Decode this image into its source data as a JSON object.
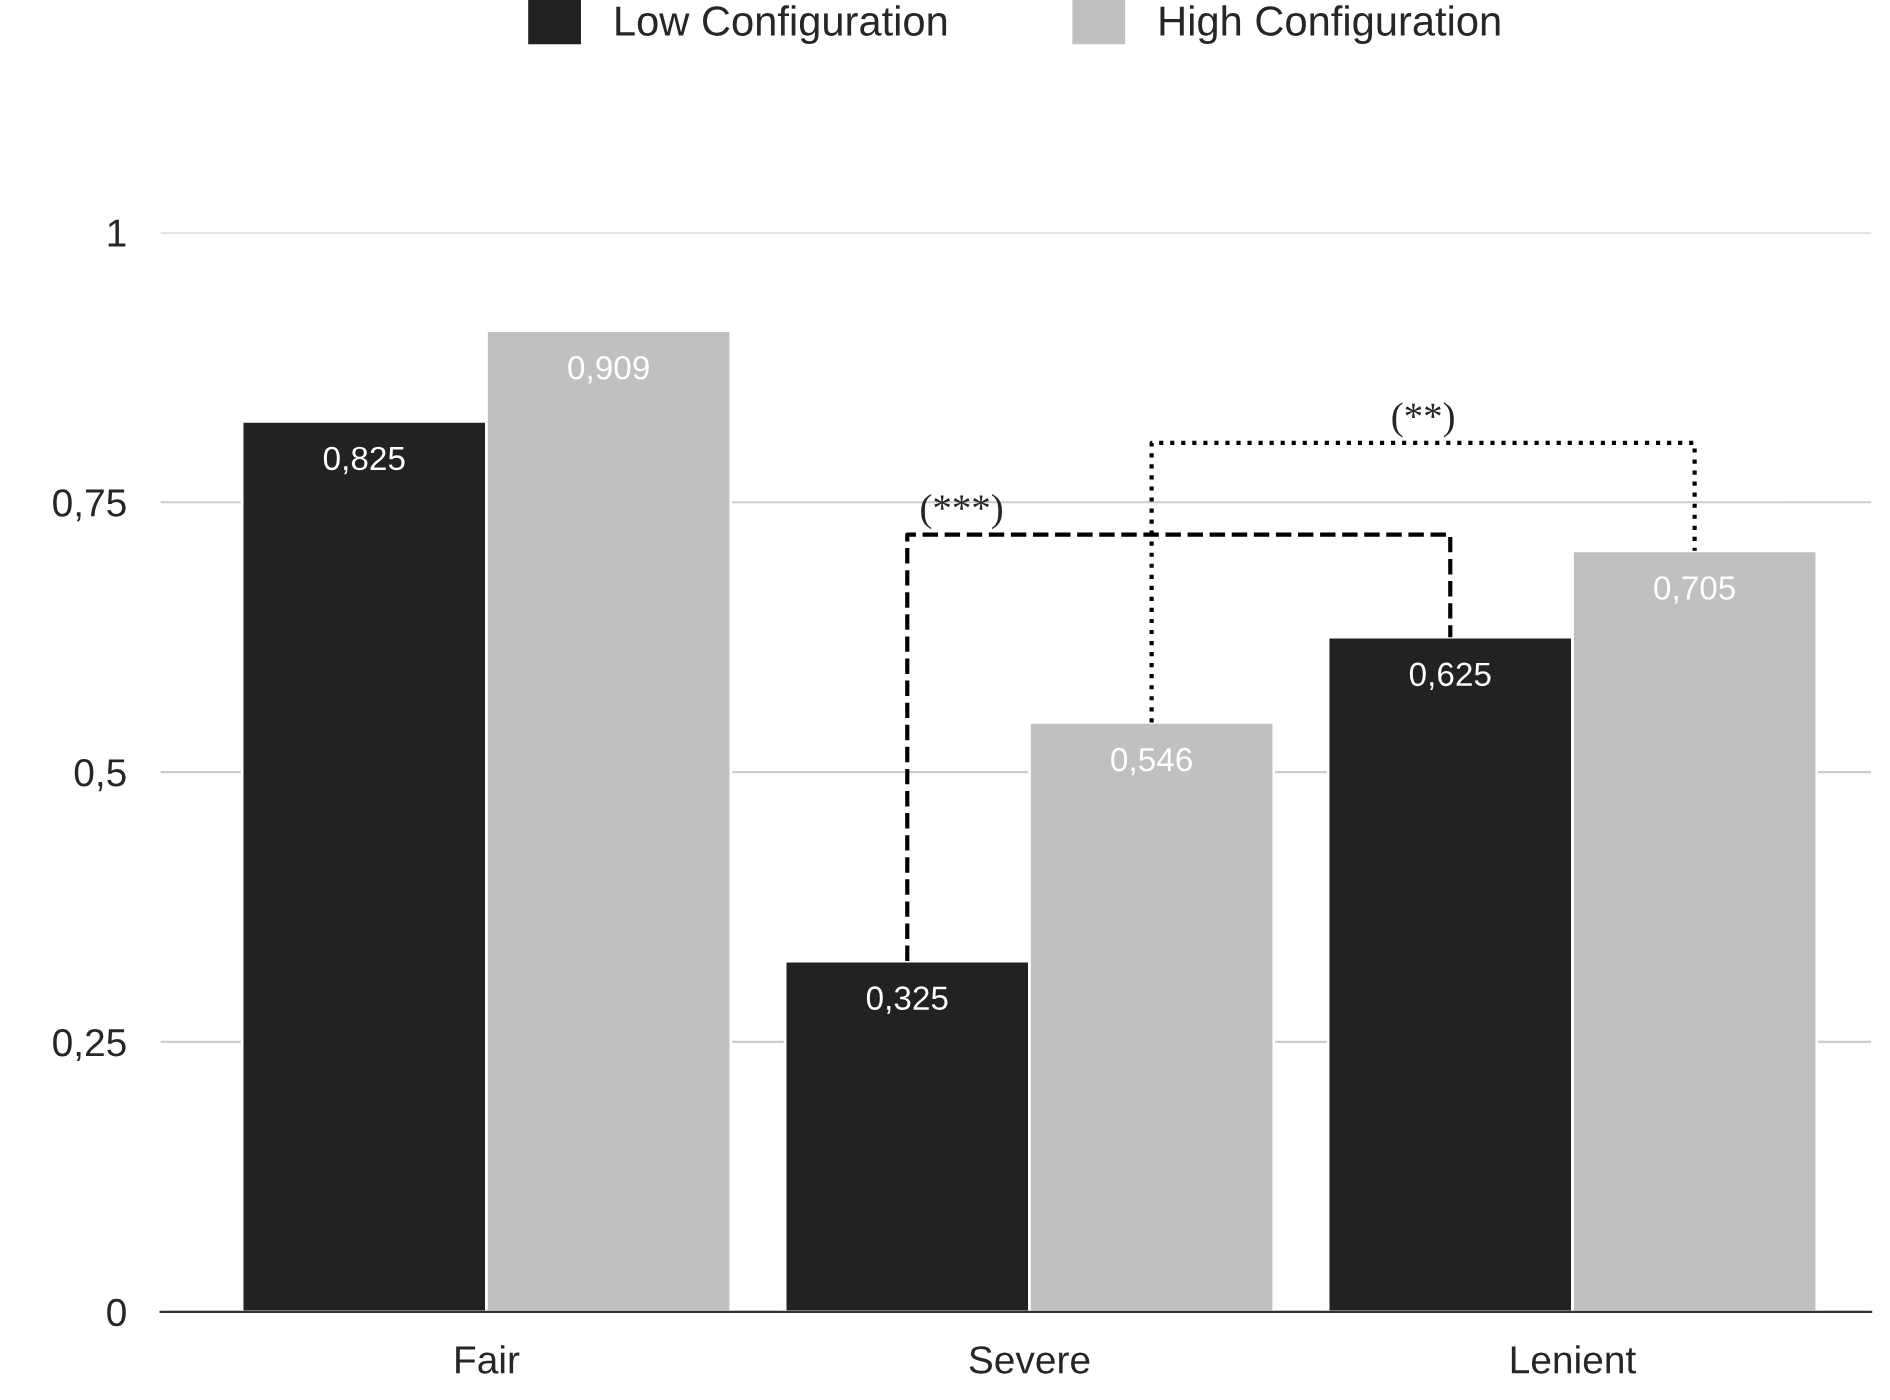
{
  "chart_data": {
    "type": "bar",
    "categories": [
      "Fair",
      "Severe",
      "Lenient"
    ],
    "series": [
      {
        "name": "Low Configuration",
        "color": "#222222",
        "values": [
          0.825,
          0.325,
          0.625
        ],
        "value_labels": [
          "0,825",
          "0,325",
          "0,625"
        ]
      },
      {
        "name": "High Configuration",
        "color": "#c0c0c0",
        "values": [
          0.909,
          0.546,
          0.705
        ],
        "value_labels": [
          "0,909",
          "0,546",
          "0,705"
        ]
      }
    ],
    "ylim": [
      0,
      1
    ],
    "yticks": [
      {
        "value": 0,
        "label": "0"
      },
      {
        "value": 0.25,
        "label": "0,25"
      },
      {
        "value": 0.5,
        "label": "0,5"
      },
      {
        "value": 0.75,
        "label": "0,75"
      },
      {
        "value": 1,
        "label": "1"
      }
    ],
    "grid": "y",
    "legend": "top",
    "annotations": [
      "(***)",
      "(**)"
    ]
  }
}
